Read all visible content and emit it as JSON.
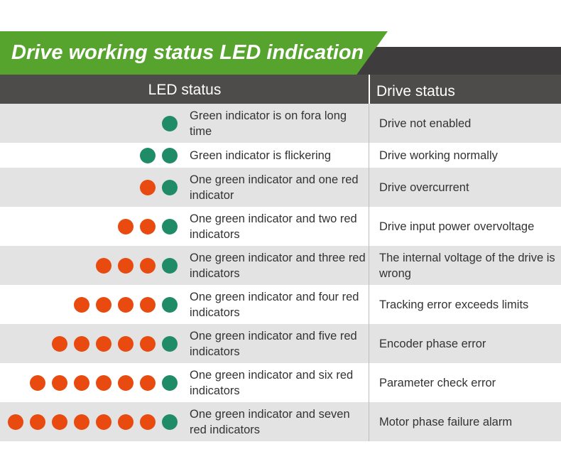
{
  "title": "Drive working status LED indication",
  "colors": {
    "green_led": "#1f8c67",
    "red_led": "#e84a0f",
    "banner": "#56a42e",
    "header": "#4e4b4b"
  },
  "header": {
    "led_status": "LED status",
    "drive_status": "Drive status"
  },
  "rows": [
    {
      "green": 1,
      "red": 0,
      "led_text": "Green indicator is on fora long time",
      "drive_text": "Drive not enabled"
    },
    {
      "green": 2,
      "red": 0,
      "led_text": "Green indicator is flickering",
      "drive_text": "Drive working normally"
    },
    {
      "green": 1,
      "red": 1,
      "led_text": "One green indicator and one red indicator",
      "drive_text": "Drive overcurrent"
    },
    {
      "green": 1,
      "red": 2,
      "led_text": "One green indicator and two red indicators",
      "drive_text": "Drive input power overvoltage"
    },
    {
      "green": 1,
      "red": 3,
      "led_text": "One green indicator and three red indicators",
      "drive_text": "The internal voltage of the drive is wrong"
    },
    {
      "green": 1,
      "red": 4,
      "led_text": "One green indicator and four red indicators",
      "drive_text": "Tracking error exceeds limits"
    },
    {
      "green": 1,
      "red": 5,
      "led_text": "One green indicator and five red indicators",
      "drive_text": "Encoder phase error"
    },
    {
      "green": 1,
      "red": 6,
      "led_text": "One green indicator and six red indicators",
      "drive_text": "Parameter check error"
    },
    {
      "green": 1,
      "red": 7,
      "led_text": "One green indicator and seven red indicators",
      "drive_text": "Motor phase failure alarm"
    }
  ]
}
